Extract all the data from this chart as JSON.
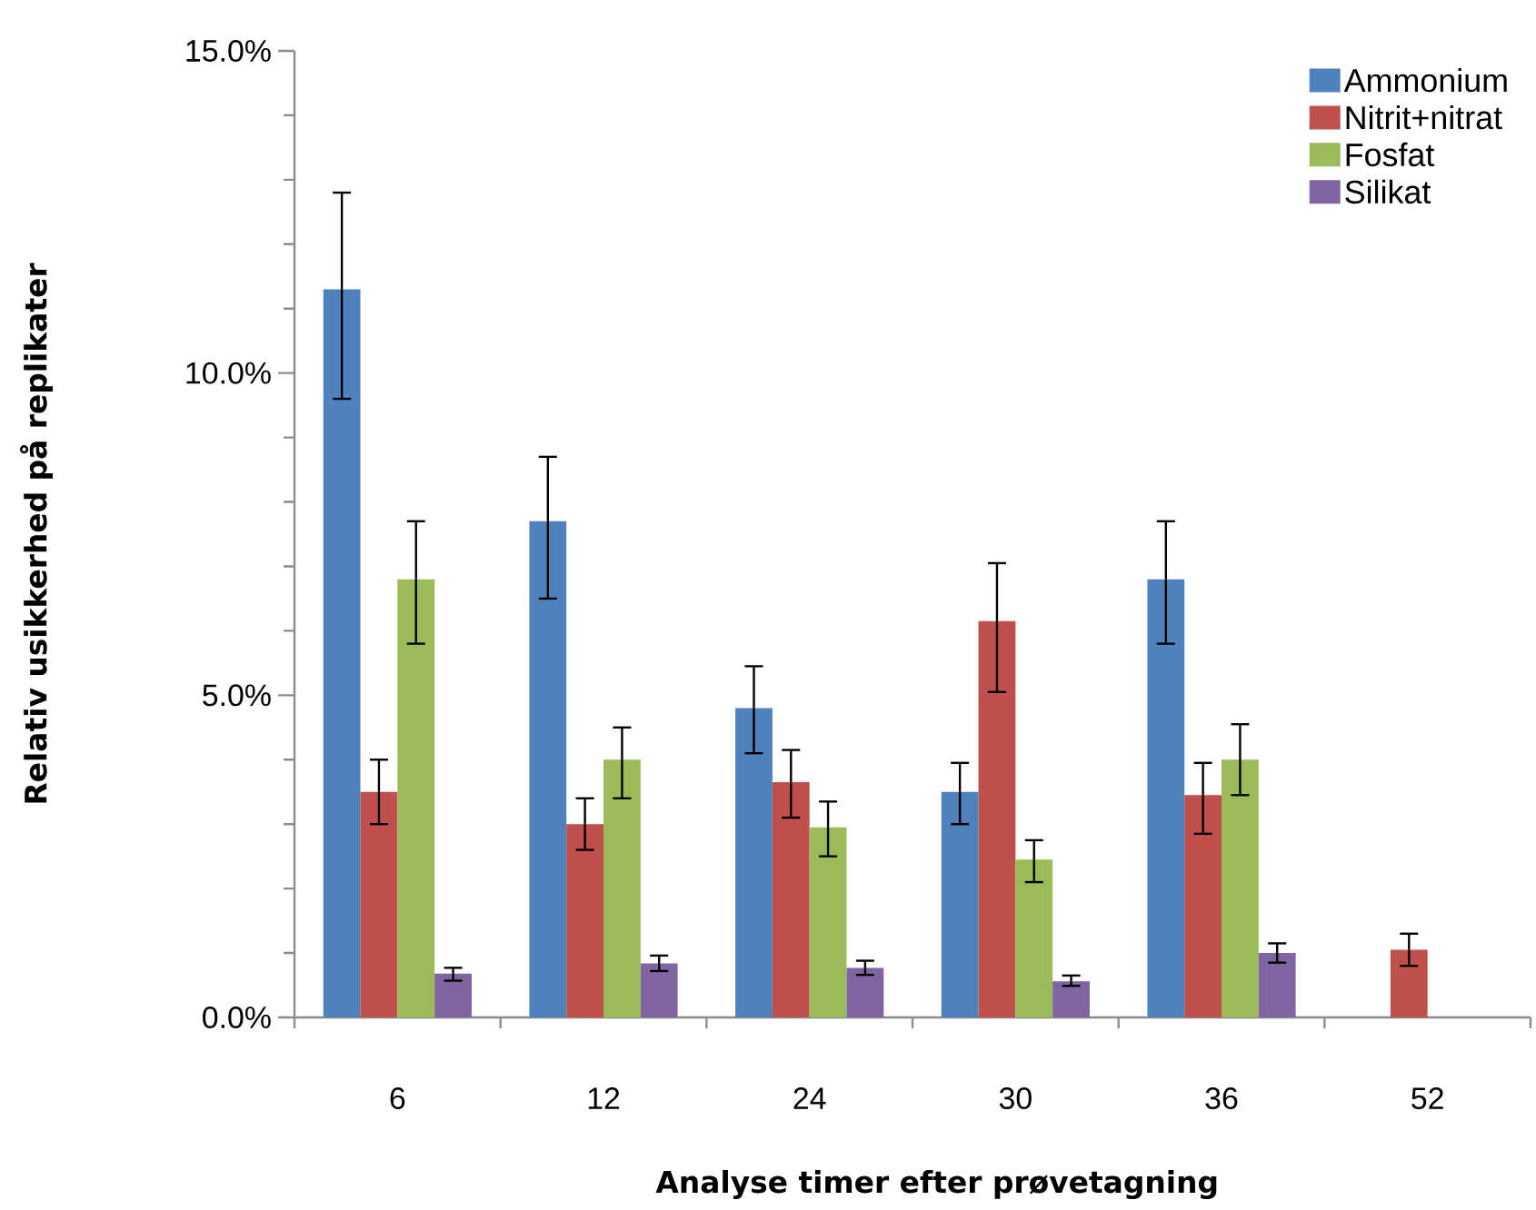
{
  "chart_data": {
    "type": "bar",
    "xlabel": "Analyse timer efter prøvetagning",
    "ylabel": "Relativ usikkerhed på replikater",
    "categories": [
      "6",
      "12",
      "24",
      "30",
      "36",
      "52"
    ],
    "series": [
      {
        "name": "Ammonium",
        "color": "#4f81bd",
        "values": [
          11.3,
          7.7,
          4.8,
          3.5,
          6.8,
          null
        ],
        "errors": [
          [
            9.6,
            12.8
          ],
          [
            6.5,
            8.7
          ],
          [
            4.1,
            5.45
          ],
          [
            3.0,
            3.95
          ],
          [
            5.8,
            7.7
          ],
          null
        ]
      },
      {
        "name": "Nitrit+nitrat",
        "color": "#c0504d",
        "values": [
          3.5,
          3.0,
          3.65,
          6.15,
          3.45,
          1.05
        ],
        "errors": [
          [
            3.0,
            4.0
          ],
          [
            2.6,
            3.4
          ],
          [
            3.1,
            4.15
          ],
          [
            5.05,
            7.05
          ],
          [
            2.85,
            3.95
          ],
          [
            0.8,
            1.3
          ]
        ]
      },
      {
        "name": "Fosfat",
        "color": "#9bbb59",
        "values": [
          6.8,
          4.0,
          2.95,
          2.45,
          4.0,
          null
        ],
        "errors": [
          [
            5.8,
            7.7
          ],
          [
            3.4,
            4.5
          ],
          [
            2.5,
            3.35
          ],
          [
            2.1,
            2.75
          ],
          [
            3.45,
            4.55
          ],
          null
        ]
      },
      {
        "name": "Silikat",
        "color": "#8064a2",
        "values": [
          0.68,
          0.84,
          0.77,
          0.56,
          1.0,
          null
        ],
        "errors": [
          [
            0.57,
            0.77
          ],
          [
            0.72,
            0.96
          ],
          [
            0.66,
            0.88
          ],
          [
            0.49,
            0.65
          ],
          [
            0.85,
            1.15
          ],
          null
        ]
      }
    ],
    "ylim": [
      0,
      15
    ],
    "yticks": [
      {
        "value": 0,
        "label": "0.0%"
      },
      {
        "value": 1,
        "label": null
      },
      {
        "value": 2,
        "label": null
      },
      {
        "value": 3,
        "label": null
      },
      {
        "value": 4,
        "label": null
      },
      {
        "value": 5,
        "label": "5.0%"
      },
      {
        "value": 6,
        "label": null
      },
      {
        "value": 7,
        "label": null
      },
      {
        "value": 8,
        "label": null
      },
      {
        "value": 9,
        "label": null
      },
      {
        "value": 10,
        "label": "10.0%"
      },
      {
        "value": 11,
        "label": null
      },
      {
        "value": 12,
        "label": null
      },
      {
        "value": 13,
        "label": null
      },
      {
        "value": 14,
        "label": null
      },
      {
        "value": 15,
        "label": "15.0%"
      }
    ],
    "grid": false,
    "legend": "top right"
  }
}
